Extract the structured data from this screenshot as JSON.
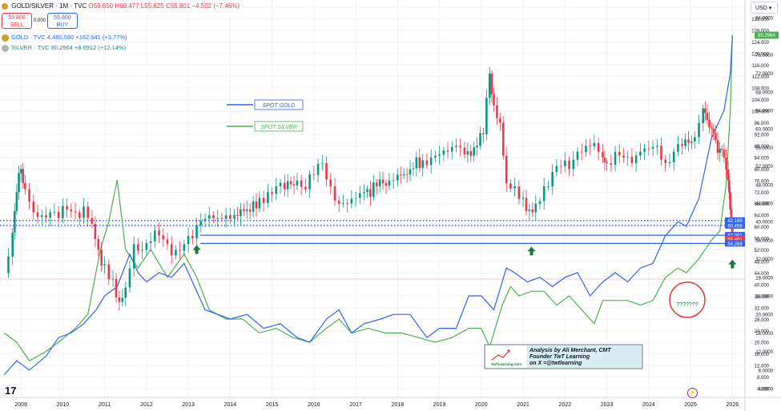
{
  "header": {
    "symbol_title": "GOLD/SILVER · 1M · TVC",
    "ohlc": "O59.650 H60.477 L55.625 C55.801 −4.502 (−7.46%)",
    "sell_price": "55.800",
    "sell_label": "SELL",
    "buy_price": "55.800",
    "buy_label": "BUY",
    "spread": "0.000",
    "legend_gold": "GOLD · TVC  4,480.590  +162.641 (+3.77%)",
    "legend_silver": "SILVER · TVC  80.2964  +8.6912 (+12.14%)",
    "currency": "USD",
    "tv_logo": "17",
    "lightning_icon": "⚡"
  },
  "colors": {
    "up": "#089981",
    "down": "#f23645",
    "gold": "#2962ff",
    "silver": "#4caf50",
    "support": "#2962ff",
    "callout": "#e53935"
  },
  "chart_data": {
    "type": "candlestick",
    "title": "GOLD/SILVER · 1M · TVC",
    "x_ticks": [
      "2009",
      "2010",
      "2011",
      "2012",
      "2013",
      "2014",
      "2015",
      "2016",
      "2017",
      "2018",
      "2019",
      "2020",
      "2021",
      "2022",
      "2023",
      "2024",
      "2025",
      "2026"
    ],
    "right_axis_ratio": [
      "136.000",
      "132.000",
      "128.000",
      "124.000",
      "120.000",
      "116.000",
      "112.000",
      "108.000",
      "104.000",
      "100.000",
      "96.000",
      "92.000",
      "88.000",
      "84.000",
      "80.000",
      "76.000",
      "72.000",
      "68.000",
      "64.000",
      "60.000",
      "56.000",
      "52.000",
      "48.000",
      "44.000",
      "40.000",
      "36.000",
      "32.000",
      "28.000",
      "24.000",
      "20.000",
      "16.000",
      "12.000",
      "8.000",
      "4.000"
    ],
    "right_axis_usd": [
      "84.0000",
      "80.0000",
      "76.0000",
      "72.0000",
      "68.0000",
      "64.0000",
      "60.0000",
      "56.0000",
      "52.0000",
      "48.0000",
      "44.0000",
      "40.0000",
      "36.0000",
      "32.0000",
      "28.0000",
      "24.0000",
      "20.0000",
      "16.0000",
      "12.0000",
      "8.0000",
      "4.0000"
    ],
    "price_labels": [
      {
        "text": "62.199",
        "value": 62.199,
        "color": "#2962ff"
      },
      {
        "text": "60.456",
        "value": 60.456,
        "color": "#2962ff"
      },
      {
        "text": "57.091",
        "value": 57.091,
        "color": "#2962ff"
      },
      {
        "text": "55.801",
        "value": 55.801,
        "color": "#f23645"
      },
      {
        "text": "54.269",
        "value": 54.269,
        "color": "#2962ff"
      }
    ],
    "silver_price_label": "80.2964",
    "support_lines": [
      {
        "value": 62.199,
        "style": "dotted"
      },
      {
        "value": 60.456,
        "style": "dotted"
      },
      {
        "value": 57.091,
        "style": "solid"
      },
      {
        "value": 54.269,
        "style": "solid"
      }
    ],
    "ratio_monthly_close": [
      [
        2008.6,
        44
      ],
      [
        2008.8,
        58
      ],
      [
        2008.9,
        72
      ],
      [
        2009.0,
        80
      ],
      [
        2009.1,
        73
      ],
      [
        2009.3,
        65
      ],
      [
        2009.5,
        64
      ],
      [
        2009.7,
        65
      ],
      [
        2009.9,
        63
      ],
      [
        2010.1,
        66
      ],
      [
        2010.3,
        65
      ],
      [
        2010.5,
        67
      ],
      [
        2010.7,
        61
      ],
      [
        2010.85,
        52
      ],
      [
        2011.0,
        47
      ],
      [
        2011.2,
        42
      ],
      [
        2011.35,
        34
      ],
      [
        2011.5,
        39
      ],
      [
        2011.7,
        54
      ],
      [
        2011.9,
        52
      ],
      [
        2012.1,
        55
      ],
      [
        2012.3,
        57
      ],
      [
        2012.5,
        54
      ],
      [
        2012.7,
        52
      ],
      [
        2012.9,
        54
      ],
      [
        2013.1,
        56
      ],
      [
        2013.3,
        62
      ],
      [
        2013.5,
        64
      ],
      [
        2013.7,
        63
      ],
      [
        2013.9,
        64
      ],
      [
        2014.1,
        64
      ],
      [
        2014.4,
        66
      ],
      [
        2014.7,
        70
      ],
      [
        2014.9,
        72
      ],
      [
        2015.1,
        74
      ],
      [
        2015.3,
        73
      ],
      [
        2015.6,
        76
      ],
      [
        2015.8,
        73
      ],
      [
        2016.0,
        78
      ],
      [
        2016.2,
        82
      ],
      [
        2016.4,
        74
      ],
      [
        2016.6,
        68
      ],
      [
        2016.8,
        68
      ],
      [
        2017.0,
        70
      ],
      [
        2017.2,
        72
      ],
      [
        2017.5,
        74
      ],
      [
        2017.8,
        76
      ],
      [
        2018.0,
        78
      ],
      [
        2018.3,
        80
      ],
      [
        2018.6,
        83
      ],
      [
        2018.8,
        84
      ],
      [
        2019.0,
        85
      ],
      [
        2019.2,
        86
      ],
      [
        2019.4,
        88
      ],
      [
        2019.6,
        85
      ],
      [
        2019.9,
        88
      ],
      [
        2020.05,
        92
      ],
      [
        2020.2,
        113
      ],
      [
        2020.3,
        102
      ],
      [
        2020.45,
        96
      ],
      [
        2020.6,
        75
      ],
      [
        2020.8,
        74
      ],
      [
        2021.0,
        70
      ],
      [
        2021.15,
        66
      ],
      [
        2021.3,
        68
      ],
      [
        2021.5,
        74
      ],
      [
        2021.7,
        79
      ],
      [
        2021.9,
        81
      ],
      [
        2022.1,
        80
      ],
      [
        2022.3,
        86
      ],
      [
        2022.5,
        88
      ],
      [
        2022.7,
        89
      ],
      [
        2022.9,
        84
      ],
      [
        2023.0,
        82
      ],
      [
        2023.2,
        86
      ],
      [
        2023.4,
        84
      ],
      [
        2023.6,
        82
      ],
      [
        2023.8,
        86
      ],
      [
        2024.0,
        87
      ],
      [
        2024.2,
        88
      ],
      [
        2024.4,
        82
      ],
      [
        2024.6,
        86
      ],
      [
        2024.8,
        88
      ],
      [
        2024.95,
        89
      ],
      [
        2025.1,
        91
      ],
      [
        2025.3,
        101
      ],
      [
        2025.4,
        97
      ],
      [
        2025.5,
        94
      ],
      [
        2025.6,
        90
      ],
      [
        2025.7,
        87
      ],
      [
        2025.8,
        84
      ],
      [
        2025.9,
        76
      ],
      [
        2025.95,
        66
      ],
      [
        2026.0,
        55.801
      ]
    ],
    "series": [
      {
        "name": "SPOT GOLD",
        "color": "#2962ff"
      },
      {
        "name": "SPOT SILVER",
        "color": "#4caf50"
      }
    ],
    "annotations": [
      {
        "text": "SPOT GOLD",
        "type": "legend-box"
      },
      {
        "text": "SPOT SILVER",
        "type": "legend-box"
      },
      {
        "text": "???????",
        "type": "callout"
      },
      {
        "text": "Analysis by Ali Merchant, CMT",
        "type": "credit"
      },
      {
        "text": "Founder TwT Learning",
        "type": "credit"
      },
      {
        "text": "on X =@twtlearning",
        "type": "credit"
      },
      {
        "text": "TwTLearning.com",
        "type": "logo"
      }
    ],
    "xlim": [
      2008.5,
      2026.3
    ],
    "ylim": [
      0,
      138
    ],
    "grid": true,
    "legend_position": "top-left"
  }
}
